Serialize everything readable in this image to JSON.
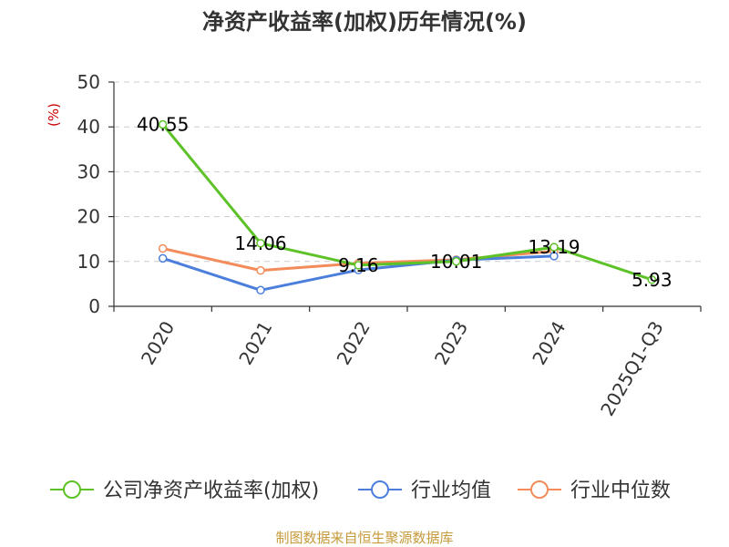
{
  "chart_data": {
    "type": "line",
    "title": "净资产收益率(加权)历年情况(%)",
    "ylabel": "(%)",
    "categories": [
      "2020",
      "2021",
      "2022",
      "2023",
      "2024",
      "2025Q1-Q3"
    ],
    "ylim": [
      0,
      50
    ],
    "yticks": [
      0,
      10,
      20,
      30,
      40,
      50
    ],
    "grid": true,
    "legend_position": "bottom",
    "series": [
      {
        "name": "公司净资产收益率(加权)",
        "color": "#5cc227",
        "values": [
          40.55,
          14.06,
          9.16,
          10.01,
          13.19,
          5.93
        ],
        "labels": [
          "40.55",
          "14.06",
          "9.16",
          "10.01",
          "13.19",
          "5.93"
        ]
      },
      {
        "name": "行业均值",
        "color": "#4b7fdb",
        "values": [
          10.7,
          3.6,
          8.1,
          10.3,
          11.2,
          null
        ]
      },
      {
        "name": "行业中位数",
        "color": "#f38c5a",
        "values": [
          12.9,
          8.0,
          9.6,
          10.4,
          12.3,
          null
        ]
      }
    ]
  },
  "source": "制图数据来自恒生聚源数据库"
}
